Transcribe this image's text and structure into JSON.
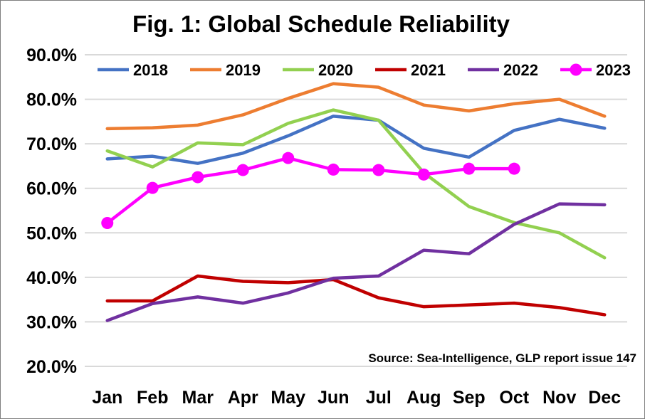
{
  "chart_data": {
    "type": "line",
    "title": "Fig. 1: Global Schedule Reliability",
    "source": "Source: Sea-Intelligence, GLP report issue 147",
    "categories": [
      "Jan",
      "Feb",
      "Mar",
      "Apr",
      "May",
      "Jun",
      "Jul",
      "Aug",
      "Sep",
      "Oct",
      "Nov",
      "Dec"
    ],
    "ylim": [
      20,
      90
    ],
    "yticks": [
      20,
      30,
      40,
      50,
      60,
      70,
      80,
      90
    ],
    "ytick_labels": [
      "20.0%",
      "30.0%",
      "40.0%",
      "50.0%",
      "60.0%",
      "70.0%",
      "80.0%",
      "90.0%"
    ],
    "grid": true,
    "legend": "top",
    "series": [
      {
        "name": "2018",
        "color": "#4472c4",
        "markers": false,
        "values": [
          66.6,
          67.2,
          65.6,
          67.9,
          71.8,
          76.2,
          75.3,
          69.0,
          67.0,
          73.0,
          75.5,
          73.5
        ]
      },
      {
        "name": "2019",
        "color": "#ed7d31",
        "markers": false,
        "values": [
          73.4,
          73.6,
          74.2,
          76.5,
          80.2,
          83.5,
          82.7,
          78.7,
          77.4,
          79.0,
          80.0,
          76.2
        ]
      },
      {
        "name": "2020",
        "color": "#92d050",
        "markers": false,
        "values": [
          68.4,
          64.8,
          70.2,
          69.8,
          74.6,
          77.6,
          75.3,
          63.5,
          55.9,
          52.3,
          50.0,
          44.4
        ]
      },
      {
        "name": "2021",
        "color": "#c00000",
        "markers": false,
        "values": [
          34.7,
          34.7,
          40.3,
          39.1,
          38.8,
          39.5,
          35.4,
          33.4,
          33.8,
          34.2,
          33.2,
          31.6
        ]
      },
      {
        "name": "2022",
        "color": "#7030a0",
        "markers": false,
        "values": [
          30.3,
          34.1,
          35.6,
          34.2,
          36.5,
          39.8,
          40.3,
          46.1,
          45.3,
          51.9,
          56.5,
          56.3
        ]
      },
      {
        "name": "2023",
        "color": "#ff00ff",
        "markers": true,
        "values": [
          52.2,
          60.1,
          62.5,
          64.1,
          66.8,
          64.2,
          64.1,
          63.1,
          64.4,
          64.4,
          null,
          null
        ]
      }
    ]
  }
}
